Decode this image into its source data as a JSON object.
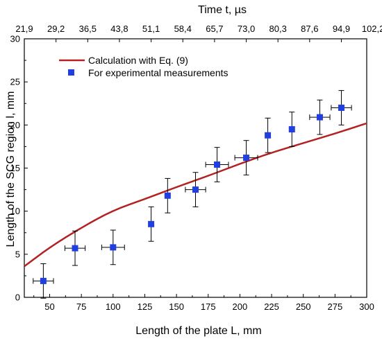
{
  "chart_data": {
    "type": "scatter",
    "xlabel": "Length of the plate  L, mm",
    "ylabel": "Length of the SCG region l, mm",
    "top_xlabel": "Time t, µs",
    "xlim": [
      30,
      300
    ],
    "ylim": [
      0,
      30
    ],
    "x_ticks": [
      50,
      75,
      100,
      125,
      150,
      175,
      200,
      225,
      250,
      275,
      300
    ],
    "y_ticks": [
      0,
      5,
      10,
      15,
      20,
      25,
      30
    ],
    "top_tick_labels": [
      "21,9",
      "29,2",
      "36,5",
      "43,8",
      "51,1",
      "58,4",
      "65,7",
      "73,0",
      "80,3",
      "87,6",
      "94,9",
      "102,2"
    ],
    "top_tick_positions": [
      30,
      55,
      80,
      105,
      130,
      155,
      180,
      205,
      230,
      255,
      280,
      305
    ],
    "legend": {
      "placement": "top-left",
      "entries": [
        "Calculation with Eq. (9)",
        "For experimental measurements"
      ]
    },
    "series": [
      {
        "name": "Calculation with Eq. (9)",
        "kind": "line",
        "color": "#b22222",
        "x": [
          30,
          50,
          75,
          100,
          125,
          150,
          175,
          200,
          225,
          250,
          275,
          300
        ],
        "y": [
          3.6,
          5.8,
          8.1,
          10.1,
          11.4,
          12.8,
          14.1,
          15.5,
          16.8,
          17.9,
          19.0,
          20.2
        ]
      },
      {
        "name": "For experimental measurements",
        "kind": "points",
        "color": "#1f3fe0",
        "x": [
          45,
          70,
          100,
          130,
          143,
          165,
          182,
          205,
          222,
          241,
          263,
          280
        ],
        "y": [
          1.9,
          5.7,
          5.8,
          8.5,
          11.8,
          12.5,
          15.4,
          16.2,
          18.8,
          19.5,
          20.9,
          22.0
        ],
        "x_err": [
          8,
          8,
          9,
          0,
          0,
          8,
          9,
          9,
          0,
          0,
          8,
          8
        ],
        "y_err": [
          2.0,
          2.0,
          2.0,
          2.0,
          2.0,
          2.0,
          2.0,
          2.0,
          2.0,
          2.0,
          2.0,
          2.0
        ]
      }
    ]
  }
}
